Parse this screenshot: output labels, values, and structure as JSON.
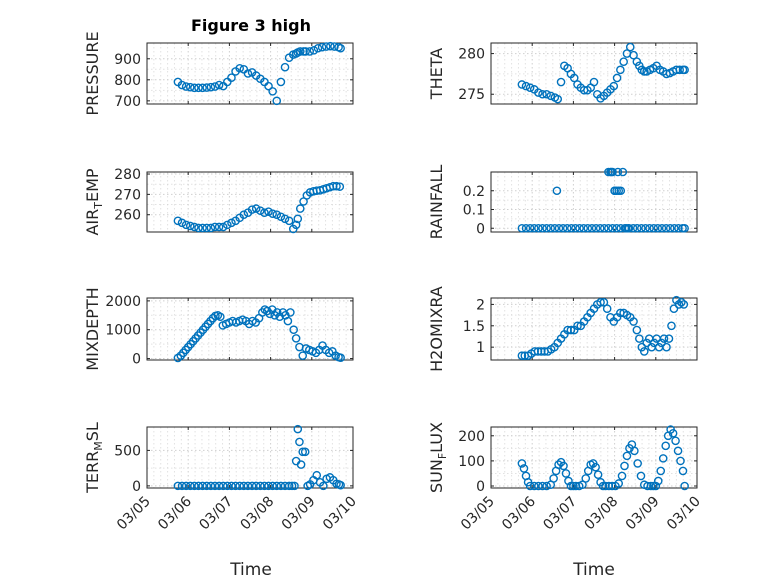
{
  "figure": {
    "title": "Figure 3 high",
    "xlabel_left": "Time",
    "xlabel_right": "Time"
  },
  "chart_data": [
    {
      "type": "scatter",
      "panel": "pressure",
      "ylabel_parts": [
        {
          "t": "PRESSURE"
        }
      ],
      "ylim": [
        685,
        975
      ],
      "yticks": [
        700,
        800,
        900
      ],
      "xlim": [
        0,
        5
      ],
      "xticks": [
        0,
        1,
        2,
        3,
        4,
        5
      ],
      "xticklabels": [
        "03/05",
        "03/06",
        "03/07",
        "03/08",
        "03/09",
        "03/10"
      ],
      "show_xticklabels": false,
      "x": [
        0.75,
        0.85,
        0.95,
        1.05,
        1.15,
        1.25,
        1.35,
        1.45,
        1.55,
        1.65,
        1.75,
        1.85,
        1.95,
        2.05,
        2.15,
        2.25,
        2.35,
        2.45,
        2.55,
        2.65,
        2.75,
        2.85,
        2.95,
        3.05,
        3.15,
        3.25,
        3.35,
        3.45,
        3.55,
        3.62,
        3.66,
        3.72,
        3.8,
        3.85,
        3.95,
        4.05,
        4.15,
        4.25,
        4.35,
        4.45,
        4.55,
        4.65,
        4.7
      ],
      "y": [
        790,
        775,
        768,
        765,
        762,
        762,
        762,
        763,
        765,
        768,
        775,
        770,
        790,
        810,
        840,
        855,
        850,
        830,
        835,
        820,
        805,
        790,
        770,
        745,
        700,
        790,
        860,
        905,
        920,
        925,
        930,
        935,
        935,
        935,
        935,
        940,
        950,
        955,
        958,
        960,
        958,
        955,
        950
      ],
      "color": "#0072bd"
    },
    {
      "type": "scatter",
      "panel": "theta",
      "ylabel_parts": [
        {
          "t": "THETA"
        }
      ],
      "ylim": [
        273.8,
        281.3
      ],
      "yticks": [
        275,
        280
      ],
      "xlim": [
        0,
        5
      ],
      "xticks": [
        0,
        1,
        2,
        3,
        4,
        5
      ],
      "xticklabels": [
        "03/05",
        "03/06",
        "03/07",
        "03/08",
        "03/09",
        "03/10"
      ],
      "show_xticklabels": false,
      "x": [
        0.75,
        0.85,
        0.95,
        1.05,
        1.15,
        1.25,
        1.35,
        1.45,
        1.55,
        1.62,
        1.7,
        1.78,
        1.86,
        1.94,
        2.02,
        2.1,
        2.18,
        2.26,
        2.34,
        2.42,
        2.5,
        2.58,
        2.66,
        2.74,
        2.82,
        2.9,
        2.98,
        3.06,
        3.14,
        3.22,
        3.3,
        3.38,
        3.46,
        3.54,
        3.6,
        3.66,
        3.72,
        3.78,
        3.86,
        3.94,
        4.02,
        4.1,
        4.18,
        4.26,
        4.34,
        4.42,
        4.5,
        4.58,
        4.66,
        4.7
      ],
      "y": [
        276.2,
        276.0,
        275.8,
        275.6,
        275.2,
        275.0,
        275.0,
        274.8,
        274.6,
        274.4,
        276.5,
        278.5,
        278.2,
        277.5,
        277.0,
        276.2,
        275.8,
        275.5,
        275.5,
        275.8,
        276.5,
        275.0,
        274.5,
        274.8,
        275.2,
        275.6,
        276.0,
        277.0,
        278.0,
        279.0,
        280.0,
        280.8,
        279.8,
        279.0,
        278.5,
        278.0,
        277.8,
        277.8,
        278.0,
        278.2,
        278.5,
        278.0,
        277.8,
        277.5,
        277.6,
        277.8,
        278.0,
        278.0,
        278.0,
        278.0
      ],
      "color": "#0072bd"
    },
    {
      "type": "scatter",
      "panel": "air_temp",
      "ylabel_parts": [
        {
          "t": "AIR"
        },
        {
          "t": "T",
          "sub": true
        },
        {
          "t": "EMP"
        }
      ],
      "ylim": [
        251.5,
        281
      ],
      "yticks": [
        260,
        270,
        280
      ],
      "xlim": [
        0,
        5
      ],
      "xticks": [
        0,
        1,
        2,
        3,
        4,
        5
      ],
      "xticklabels": [
        "03/05",
        "03/06",
        "03/07",
        "03/08",
        "03/09",
        "03/10"
      ],
      "show_xticklabels": false,
      "x": [
        0.75,
        0.85,
        0.95,
        1.05,
        1.15,
        1.25,
        1.35,
        1.45,
        1.55,
        1.65,
        1.75,
        1.85,
        1.95,
        2.05,
        2.15,
        2.25,
        2.35,
        2.45,
        2.55,
        2.65,
        2.75,
        2.85,
        2.95,
        3.05,
        3.15,
        3.25,
        3.35,
        3.45,
        3.55,
        3.62,
        3.66,
        3.72,
        3.8,
        3.88,
        3.96,
        4.04,
        4.12,
        4.2,
        4.28,
        4.36,
        4.44,
        4.52,
        4.6,
        4.68
      ],
      "y": [
        257,
        256,
        255,
        254.5,
        254,
        253.5,
        253.5,
        253.5,
        253.5,
        254,
        254,
        254,
        255,
        256,
        257,
        258.5,
        260,
        261,
        262.5,
        263,
        262,
        261,
        261.5,
        260.5,
        260,
        259,
        258,
        257,
        253,
        255,
        258,
        263,
        266.5,
        269.5,
        271,
        271.5,
        271.8,
        272,
        272.5,
        273,
        273.5,
        274,
        274,
        273.8
      ],
      "color": "#0072bd"
    },
    {
      "type": "scatter",
      "panel": "rainfall",
      "ylabel_parts": [
        {
          "t": "RAINFALL"
        }
      ],
      "ylim": [
        -0.02,
        0.3
      ],
      "yticks": [
        0,
        0.1,
        0.2
      ],
      "yticklabels": [
        "0",
        "0.1",
        "0.2"
      ],
      "xlim": [
        0,
        5
      ],
      "xticks": [
        0,
        1,
        2,
        3,
        4,
        5
      ],
      "xticklabels": [
        "03/05",
        "03/06",
        "03/07",
        "03/08",
        "03/09",
        "03/10"
      ],
      "show_xticklabels": false,
      "x": [
        0.75,
        0.85,
        0.95,
        1.05,
        1.15,
        1.25,
        1.35,
        1.45,
        1.55,
        1.65,
        1.75,
        1.85,
        1.95,
        2.05,
        2.15,
        2.25,
        2.35,
        2.45,
        2.55,
        2.65,
        2.75,
        2.85,
        2.95,
        3.05,
        3.15,
        3.25,
        3.35,
        3.45,
        3.55,
        3.65,
        3.75,
        3.85,
        3.95,
        4.05,
        4.15,
        4.25,
        4.35,
        4.45,
        4.55,
        4.65,
        4.7,
        1.6,
        2.85,
        2.9,
        2.95,
        3.0,
        3.05,
        3.1,
        3.15,
        3.2,
        3.28,
        3.33,
        2.92,
        3.0,
        3.08
      ],
      "y": [
        0,
        0,
        0,
        0,
        0,
        0,
        0,
        0,
        0,
        0,
        0,
        0,
        0,
        0,
        0,
        0,
        0,
        0,
        0,
        0,
        0,
        0,
        0,
        0,
        0,
        0,
        0,
        0,
        0,
        0,
        0,
        0,
        0,
        0,
        0,
        0,
        0,
        0,
        0,
        0,
        0,
        0.2,
        0.3,
        0.3,
        0.3,
        0.2,
        0.2,
        0.2,
        0.2,
        0.3,
        0,
        0,
        0.3,
        0.2,
        0.3
      ],
      "color": "#0072bd"
    },
    {
      "type": "scatter",
      "panel": "mixdepth",
      "ylabel_parts": [
        {
          "t": "MIXDEPTH"
        }
      ],
      "ylim": [
        -50,
        2100
      ],
      "yticks": [
        0,
        1000,
        2000
      ],
      "xlim": [
        0,
        5
      ],
      "xticks": [
        0,
        1,
        2,
        3,
        4,
        5
      ],
      "xticklabels": [
        "03/05",
        "03/06",
        "03/07",
        "03/08",
        "03/09",
        "03/10"
      ],
      "show_xticklabels": false,
      "x": [
        0.75,
        0.82,
        0.88,
        0.94,
        1.0,
        1.06,
        1.12,
        1.18,
        1.24,
        1.3,
        1.36,
        1.42,
        1.48,
        1.54,
        1.6,
        1.66,
        1.72,
        1.78,
        1.84,
        1.92,
        2.0,
        2.08,
        2.16,
        2.24,
        2.32,
        2.4,
        2.48,
        2.56,
        2.64,
        2.72,
        2.8,
        2.86,
        2.92,
        2.98,
        3.04,
        3.1,
        3.16,
        3.22,
        3.3,
        3.36,
        3.42,
        3.48,
        3.56,
        3.62,
        3.7,
        3.78,
        3.86,
        3.94,
        4.02,
        4.1,
        4.18,
        4.26,
        4.34,
        4.42,
        4.5,
        4.58,
        4.65,
        4.7
      ],
      "y": [
        20,
        100,
        200,
        300,
        400,
        500,
        600,
        700,
        800,
        900,
        1000,
        1100,
        1200,
        1300,
        1400,
        1480,
        1500,
        1450,
        1150,
        1200,
        1250,
        1300,
        1250,
        1300,
        1350,
        1300,
        1200,
        1300,
        1250,
        1400,
        1600,
        1700,
        1650,
        1550,
        1700,
        1500,
        1600,
        1450,
        1600,
        1500,
        1300,
        1600,
        1000,
        700,
        400,
        100,
        350,
        300,
        250,
        200,
        300,
        450,
        300,
        200,
        250,
        100,
        50,
        30
      ],
      "color": "#0072bd"
    },
    {
      "type": "scatter",
      "panel": "h2omixra",
      "ylabel_parts": [
        {
          "t": "H2OMIXRA"
        }
      ],
      "ylim": [
        0.7,
        2.15
      ],
      "yticks": [
        1,
        1.5,
        2
      ],
      "yticklabels": [
        "1",
        "1.5",
        "2"
      ],
      "xlim": [
        0,
        5
      ],
      "xticks": [
        0,
        1,
        2,
        3,
        4,
        5
      ],
      "xticklabels": [
        "03/05",
        "03/06",
        "03/07",
        "03/08",
        "03/09",
        "03/10"
      ],
      "show_xticklabels": false,
      "x": [
        0.75,
        0.82,
        0.9,
        0.98,
        1.06,
        1.14,
        1.22,
        1.3,
        1.38,
        1.46,
        1.54,
        1.62,
        1.7,
        1.78,
        1.86,
        1.94,
        2.02,
        2.1,
        2.18,
        2.26,
        2.34,
        2.42,
        2.5,
        2.58,
        2.66,
        2.74,
        2.82,
        2.9,
        2.98,
        3.06,
        3.14,
        3.22,
        3.3,
        3.38,
        3.46,
        3.54,
        3.6,
        3.66,
        3.72,
        3.78,
        3.84,
        3.9,
        3.96,
        4.02,
        4.08,
        4.14,
        4.2,
        4.26,
        4.32,
        4.38,
        4.44,
        4.5,
        4.56,
        4.62,
        4.68
      ],
      "y": [
        0.8,
        0.8,
        0.8,
        0.85,
        0.9,
        0.9,
        0.9,
        0.9,
        0.9,
        0.95,
        1.0,
        1.1,
        1.2,
        1.3,
        1.4,
        1.4,
        1.4,
        1.5,
        1.5,
        1.6,
        1.7,
        1.8,
        1.9,
        2.0,
        2.05,
        2.05,
        1.9,
        1.7,
        1.6,
        1.7,
        1.8,
        1.8,
        1.75,
        1.7,
        1.6,
        1.4,
        1.2,
        1.0,
        0.9,
        1.1,
        1.2,
        1.0,
        1.1,
        1.2,
        1.0,
        1.1,
        1.2,
        1.0,
        1.2,
        1.5,
        1.9,
        2.1,
        2.0,
        2.05,
        2.0
      ],
      "color": "#0072bd"
    },
    {
      "type": "scatter",
      "panel": "terr_msl",
      "ylabel_parts": [
        {
          "t": "TERR"
        },
        {
          "t": "M",
          "sub": true
        },
        {
          "t": "SL"
        }
      ],
      "ylim": [
        -30,
        830
      ],
      "yticks": [
        0,
        500
      ],
      "yticklabels": [
        "0",
        "500"
      ],
      "xlim": [
        0,
        5
      ],
      "xticks": [
        0,
        1,
        2,
        3,
        4,
        5
      ],
      "xticklabels": [
        "03/05",
        "03/06",
        "03/07",
        "03/08",
        "03/09",
        "03/10"
      ],
      "show_xticklabels": true,
      "x": [
        0.75,
        0.85,
        0.95,
        1.05,
        1.15,
        1.25,
        1.35,
        1.45,
        1.55,
        1.65,
        1.75,
        1.85,
        1.95,
        2.05,
        2.15,
        2.25,
        2.35,
        2.45,
        2.55,
        2.65,
        2.75,
        2.85,
        2.95,
        3.05,
        3.15,
        3.25,
        3.35,
        3.45,
        3.52,
        3.58,
        3.62,
        3.66,
        3.7,
        3.74,
        3.78,
        3.84,
        3.9,
        3.96,
        4.04,
        4.12,
        4.2,
        4.28,
        4.36,
        4.44,
        4.52,
        4.6,
        4.66,
        4.7
      ],
      "y": [
        0,
        0,
        0,
        0,
        0,
        0,
        0,
        0,
        0,
        0,
        0,
        0,
        0,
        0,
        0,
        0,
        0,
        0,
        0,
        0,
        0,
        0,
        0,
        0,
        0,
        0,
        0,
        0,
        0,
        0,
        350,
        800,
        620,
        300,
        480,
        480,
        0,
        20,
        80,
        150,
        50,
        0,
        100,
        120,
        80,
        30,
        20,
        10
      ],
      "color": "#0072bd"
    },
    {
      "type": "scatter",
      "panel": "sun_flux",
      "ylabel_parts": [
        {
          "t": "SUN"
        },
        {
          "t": "F",
          "sub": true
        },
        {
          "t": "LUX"
        }
      ],
      "ylim": [
        -8,
        235
      ],
      "yticks": [
        0,
        100,
        200
      ],
      "yticklabels": [
        "0",
        "100",
        "200"
      ],
      "xlim": [
        0,
        5
      ],
      "xticks": [
        0,
        1,
        2,
        3,
        4,
        5
      ],
      "xticklabels": [
        "03/05",
        "03/06",
        "03/07",
        "03/08",
        "03/09",
        "03/10"
      ],
      "show_xticklabels": true,
      "x": [
        0.75,
        0.8,
        0.85,
        0.9,
        0.95,
        1.05,
        1.15,
        1.25,
        1.35,
        1.45,
        1.52,
        1.58,
        1.64,
        1.7,
        1.76,
        1.82,
        1.88,
        1.94,
        2.0,
        2.06,
        2.14,
        2.22,
        2.3,
        2.36,
        2.42,
        2.48,
        2.54,
        2.6,
        2.66,
        2.72,
        2.78,
        2.86,
        2.94,
        3.02,
        3.1,
        3.18,
        3.24,
        3.3,
        3.36,
        3.42,
        3.48,
        3.56,
        3.64,
        3.72,
        3.8,
        3.88,
        3.94,
        4.0,
        4.06,
        4.12,
        4.18,
        4.24,
        4.3,
        4.36,
        4.42,
        4.48,
        4.54,
        4.6,
        4.66,
        4.7
      ],
      "y": [
        90,
        70,
        40,
        15,
        0,
        0,
        0,
        0,
        0,
        5,
        30,
        60,
        85,
        95,
        80,
        50,
        20,
        0,
        0,
        0,
        0,
        5,
        30,
        60,
        85,
        90,
        75,
        45,
        15,
        0,
        0,
        0,
        0,
        0,
        10,
        40,
        80,
        120,
        150,
        165,
        140,
        90,
        40,
        5,
        0,
        0,
        0,
        0,
        20,
        60,
        110,
        160,
        200,
        225,
        210,
        180,
        140,
        100,
        60,
        0
      ],
      "color": "#0072bd"
    }
  ]
}
